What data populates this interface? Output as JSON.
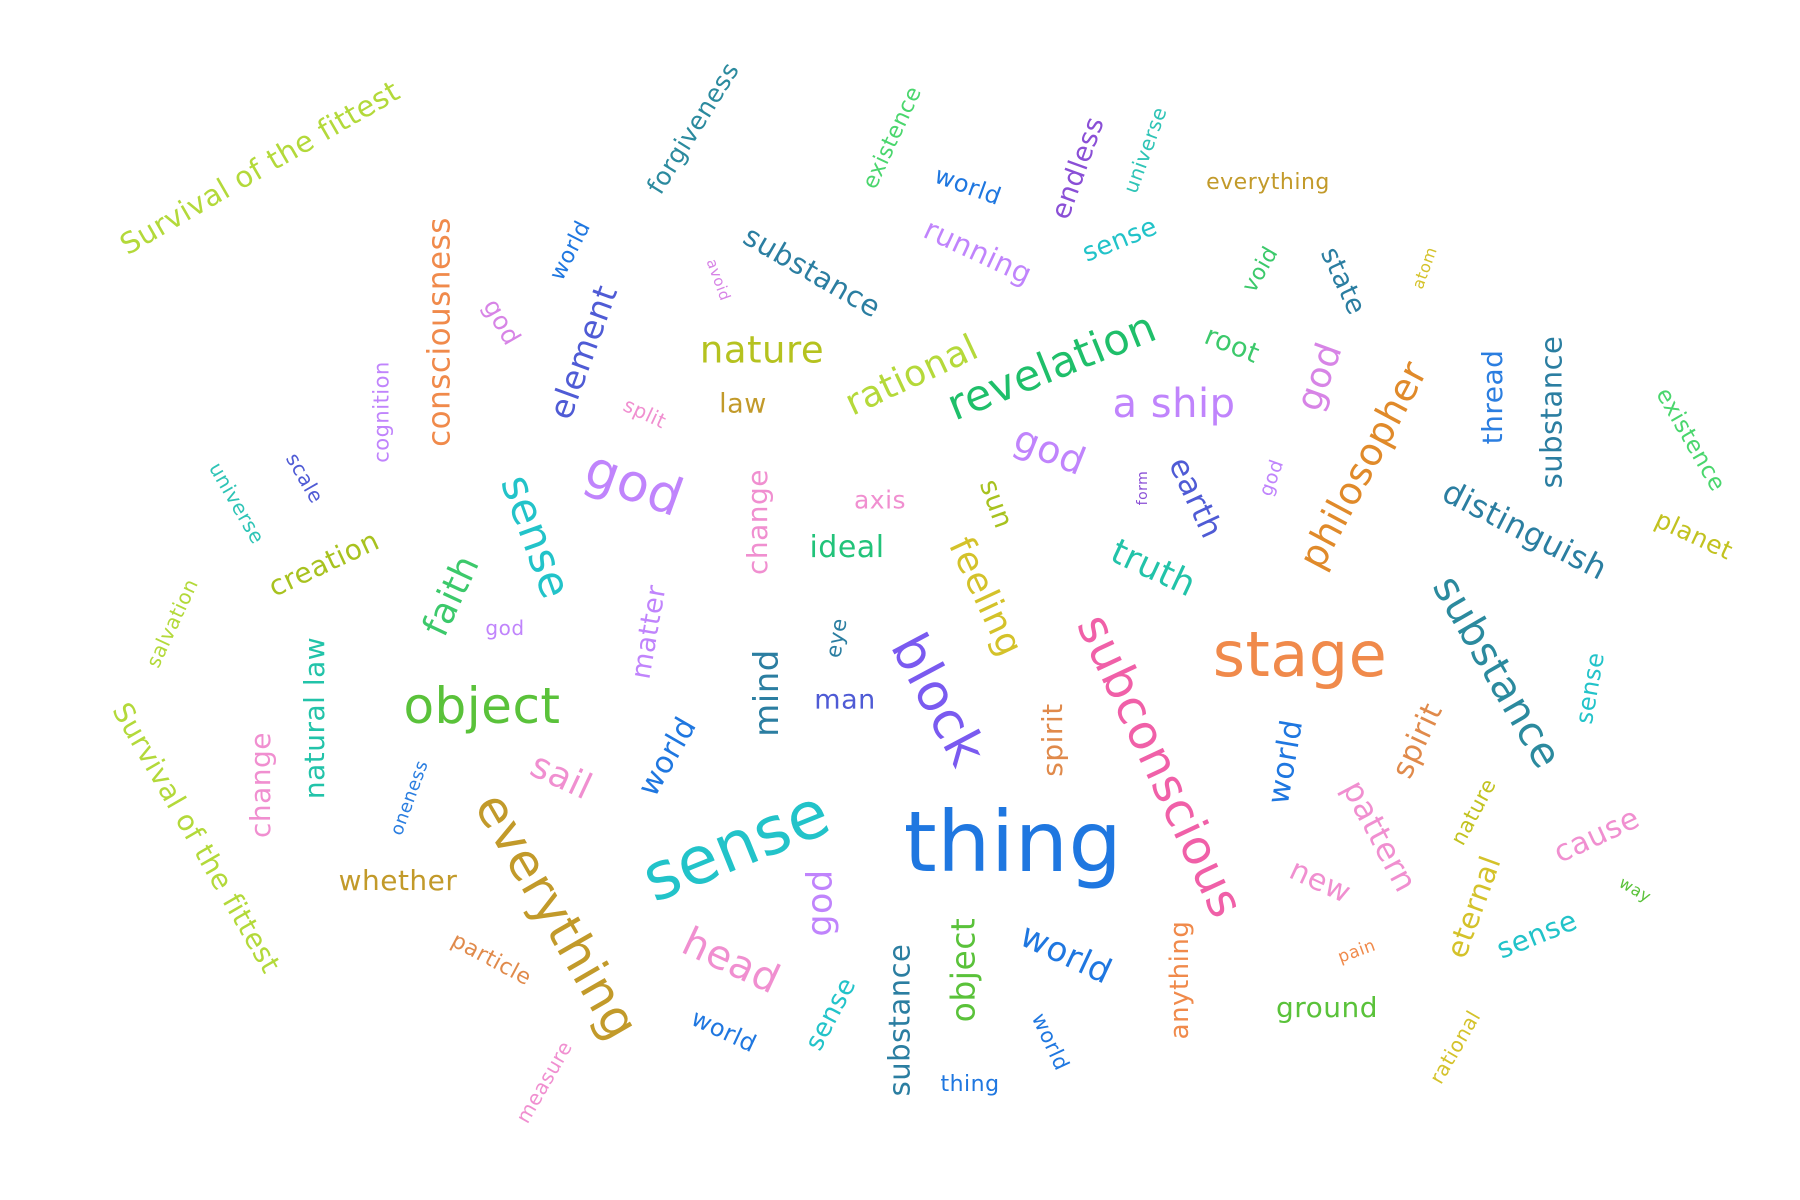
{
  "words": [
    {
      "text": "Survival of the fittest",
      "color": "#b3d93a"
    },
    {
      "text": "forgiveness",
      "color": "#2b8a9e"
    },
    {
      "text": "existence",
      "color": "#4ad66d"
    },
    {
      "text": "world",
      "color": "#1f77e0"
    },
    {
      "text": "endless",
      "color": "#8a4fd6"
    },
    {
      "text": "universe",
      "color": "#2ec4b6"
    },
    {
      "text": "everything",
      "color": "#c29a2a"
    },
    {
      "text": "consciousness",
      "color": "#f08a4b"
    },
    {
      "text": "world",
      "color": "#1f77e0"
    },
    {
      "text": "avoid",
      "color": "#d784e6"
    },
    {
      "text": "substance",
      "color": "#2b7ea1"
    },
    {
      "text": "running",
      "color": "#c084fc"
    },
    {
      "text": "sense",
      "color": "#22c3c9"
    },
    {
      "text": "void",
      "color": "#3cc96b"
    },
    {
      "text": "state",
      "color": "#2b7ea1"
    },
    {
      "text": "atom",
      "color": "#d4c22a"
    },
    {
      "text": "god",
      "color": "#d784e6"
    },
    {
      "text": "element",
      "color": "#4f5bd5"
    },
    {
      "text": "nature",
      "color": "#b5c21f"
    },
    {
      "text": "rational",
      "color": "#b5d93a"
    },
    {
      "text": "revelation",
      "color": "#1fbf6a"
    },
    {
      "text": "root",
      "color": "#3cc96b"
    },
    {
      "text": "god",
      "color": "#d784e6"
    },
    {
      "text": "philosopher",
      "color": "#e08a2a"
    },
    {
      "text": "thread",
      "color": "#2b7ee0"
    },
    {
      "text": "substance",
      "color": "#2b7ea1"
    },
    {
      "text": "existence",
      "color": "#4ad66d"
    },
    {
      "text": "cognition",
      "color": "#c084fc"
    },
    {
      "text": "split",
      "color": "#f08fd0"
    },
    {
      "text": "law",
      "color": "#c29a2a"
    },
    {
      "text": "a ship",
      "color": "#c084fc"
    },
    {
      "text": "universe",
      "color": "#2ec4b6"
    },
    {
      "text": "scale",
      "color": "#4f5bd5"
    },
    {
      "text": "god",
      "color": "#c084fc"
    },
    {
      "text": "sense",
      "color": "#22c3c9"
    },
    {
      "text": "change",
      "color": "#f08fd0"
    },
    {
      "text": "axis",
      "color": "#f08fd0"
    },
    {
      "text": "god",
      "color": "#c084fc"
    },
    {
      "text": "sun",
      "color": "#a8c21f"
    },
    {
      "text": "form",
      "color": "#8a4fd6"
    },
    {
      "text": "earth",
      "color": "#4f5bd5"
    },
    {
      "text": "god",
      "color": "#c084fc"
    },
    {
      "text": "distinguish",
      "color": "#2b7ea1"
    },
    {
      "text": "planet",
      "color": "#c2c21f"
    },
    {
      "text": "creation",
      "color": "#a8c21f"
    },
    {
      "text": "faith",
      "color": "#3cc96b"
    },
    {
      "text": "ideal",
      "color": "#22c37a"
    },
    {
      "text": "feeling",
      "color": "#d4c22a"
    },
    {
      "text": "truth",
      "color": "#22c3a9"
    },
    {
      "text": "substance",
      "color": "#2b8a9e"
    },
    {
      "text": "salvation",
      "color": "#b3d93a"
    },
    {
      "text": "god",
      "color": "#c084fc"
    },
    {
      "text": "matter",
      "color": "#c084fc"
    },
    {
      "text": "eye",
      "color": "#2b7ea1"
    },
    {
      "text": "subconscious",
      "color": "#f060a8"
    },
    {
      "text": "stage",
      "color": "#f08a4b"
    },
    {
      "text": "thing",
      "color": "#1f77e0"
    },
    {
      "text": "Survival of the fittest",
      "color": "#b3d93a"
    },
    {
      "text": "object",
      "color": "#5ac23a"
    },
    {
      "text": "mind",
      "color": "#2b7ea1"
    },
    {
      "text": "block",
      "color": "#7a5af0"
    },
    {
      "text": "man",
      "color": "#4f5bd5"
    },
    {
      "text": "sense",
      "color": "#22c3c9"
    },
    {
      "text": "natural law",
      "color": "#22c3a9"
    },
    {
      "text": "change",
      "color": "#f08fd0"
    },
    {
      "text": "world",
      "color": "#1f77e0"
    },
    {
      "text": "spirit",
      "color": "#e08a4b"
    },
    {
      "text": "world",
      "color": "#1f77e0"
    },
    {
      "text": "spirit",
      "color": "#e08a4b"
    },
    {
      "text": "sail",
      "color": "#f08fd0"
    },
    {
      "text": "oneness",
      "color": "#2b7ee0"
    },
    {
      "text": "pattern",
      "color": "#f08fd0"
    },
    {
      "text": "nature",
      "color": "#c2c21f"
    },
    {
      "text": "everything",
      "color": "#c29a2a"
    },
    {
      "text": "sense",
      "color": "#22c3c9"
    },
    {
      "text": "thing",
      "color": "#1f77e0"
    },
    {
      "text": "cause",
      "color": "#f08fd0"
    },
    {
      "text": "whether",
      "color": "#c29a2a"
    },
    {
      "text": "new",
      "color": "#f08fd0"
    },
    {
      "text": "way",
      "color": "#5ac23a"
    },
    {
      "text": "god",
      "color": "#c084fc"
    },
    {
      "text": "eternal",
      "color": "#d4c22a"
    },
    {
      "text": "particle",
      "color": "#e08a4b"
    },
    {
      "text": "head",
      "color": "#f08fd0"
    },
    {
      "text": "world",
      "color": "#1f77e0"
    },
    {
      "text": "object",
      "color": "#5ac23a"
    },
    {
      "text": "anything",
      "color": "#f08a4b"
    },
    {
      "text": "pain",
      "color": "#f08a4b"
    },
    {
      "text": "sense",
      "color": "#22c3c9"
    },
    {
      "text": "substance",
      "color": "#2b7ea1"
    },
    {
      "text": "ground",
      "color": "#5ac23a"
    },
    {
      "text": "world",
      "color": "#1f77e0"
    },
    {
      "text": "sense",
      "color": "#22c3c9"
    },
    {
      "text": "world",
      "color": "#1f77e0"
    },
    {
      "text": "rational",
      "color": "#d4c22a"
    },
    {
      "text": "measure",
      "color": "#f08fd0"
    },
    {
      "text": "thing",
      "color": "#1f77e0"
    }
  ]
}
